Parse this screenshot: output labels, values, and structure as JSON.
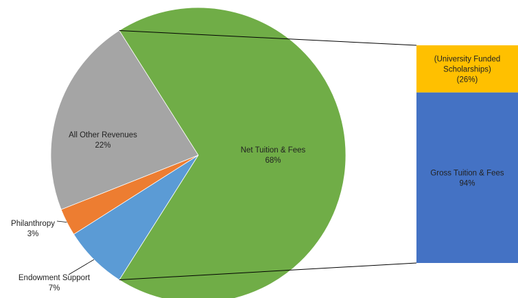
{
  "chart_data": [
    {
      "type": "pie",
      "title": "",
      "slices": [
        {
          "label": "Net Tuition & Fees",
          "value": 68,
          "display": "68%",
          "color": "#70AD47"
        },
        {
          "label": "Endowment Support",
          "value": 7,
          "display": "7%",
          "color": "#5B9BD5"
        },
        {
          "label": "Philanthropy",
          "value": 3,
          "display": "3%",
          "color": "#ED7D31"
        },
        {
          "label": "All Other Revenues",
          "value": 22,
          "display": "22%",
          "color": "#A5A5A5"
        }
      ]
    },
    {
      "type": "bar",
      "stacked": true,
      "title": "",
      "breakdown_of": "Net Tuition & Fees",
      "segments": [
        {
          "label_lines": [
            "(University Funded",
            "Scholarships)",
            "(26%)"
          ],
          "value": -26,
          "color": "#FFC000"
        },
        {
          "label_lines": [
            "Gross Tuition & Fees",
            "94%"
          ],
          "value": 94,
          "color": "#4472C4"
        }
      ]
    }
  ]
}
